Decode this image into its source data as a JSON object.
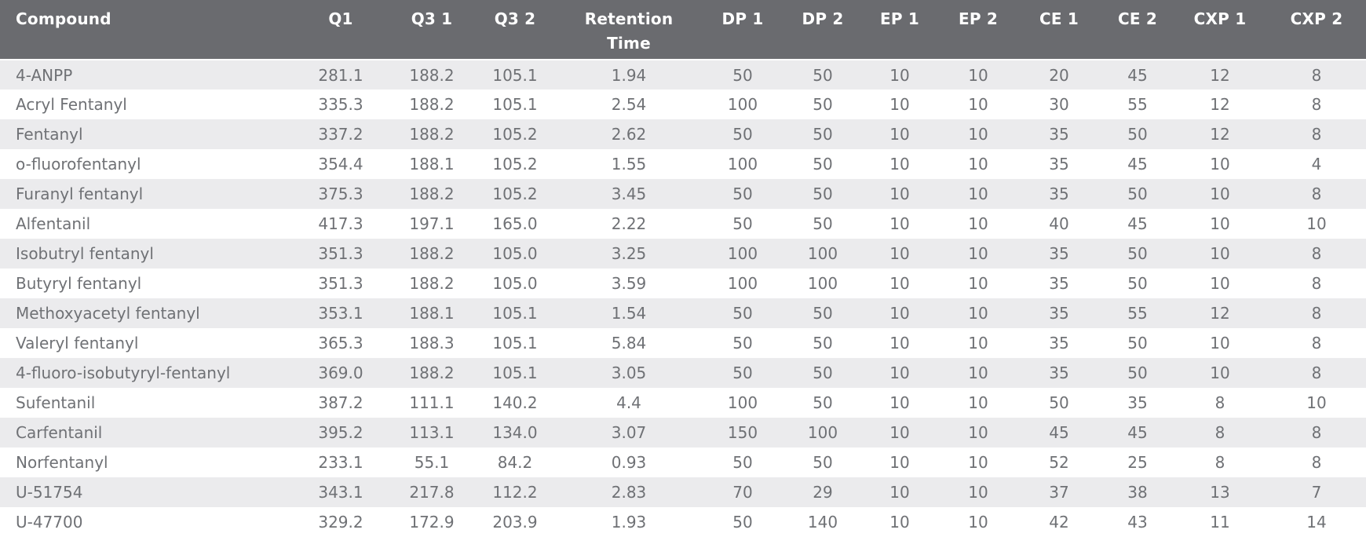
{
  "colors": {
    "header_bg": "#6a6b6f",
    "header_text": "#ffffff",
    "stripe_bg": "#ebebed",
    "row_bg": "#ffffff",
    "body_text": "#6f7175"
  },
  "table": {
    "columns": [
      {
        "key": "compound",
        "label": "Compound"
      },
      {
        "key": "q1",
        "label": "Q1"
      },
      {
        "key": "q3_1",
        "label": "Q3 1"
      },
      {
        "key": "q3_2",
        "label": "Q3 2"
      },
      {
        "key": "retention_time",
        "label": "Retention Time"
      },
      {
        "key": "dp_1",
        "label": "DP 1"
      },
      {
        "key": "dp_2",
        "label": "DP 2"
      },
      {
        "key": "ep_1",
        "label": "EP 1"
      },
      {
        "key": "ep_2",
        "label": "EP 2"
      },
      {
        "key": "ce_1",
        "label": "CE 1"
      },
      {
        "key": "ce_2",
        "label": "CE 2"
      },
      {
        "key": "cxp_1",
        "label": "CXP 1"
      },
      {
        "key": "cxp_2",
        "label": "CXP 2"
      }
    ],
    "rows": [
      [
        "4-ANPP",
        "281.1",
        "188.2",
        "105.1",
        "1.94",
        "50",
        "50",
        "10",
        "10",
        "20",
        "45",
        "12",
        "8"
      ],
      [
        "Acryl Fentanyl",
        "335.3",
        "188.2",
        "105.1",
        "2.54",
        "100",
        "50",
        "10",
        "10",
        "30",
        "55",
        "12",
        "8"
      ],
      [
        "Fentanyl",
        "337.2",
        "188.2",
        "105.2",
        "2.62",
        "50",
        "50",
        "10",
        "10",
        "35",
        "50",
        "12",
        "8"
      ],
      [
        "o-fluorofentanyl",
        "354.4",
        "188.1",
        "105.2",
        "1.55",
        "100",
        "50",
        "10",
        "10",
        "35",
        "45",
        "10",
        "4"
      ],
      [
        "Furanyl fentanyl",
        "375.3",
        "188.2",
        "105.2",
        "3.45",
        "50",
        "50",
        "10",
        "10",
        "35",
        "50",
        "10",
        "8"
      ],
      [
        "Alfentanil",
        "417.3",
        "197.1",
        "165.0",
        "2.22",
        "50",
        "50",
        "10",
        "10",
        "40",
        "45",
        "10",
        "10"
      ],
      [
        "Isobutryl fentanyl",
        "351.3",
        "188.2",
        "105.0",
        "3.25",
        "100",
        "100",
        "10",
        "10",
        "35",
        "50",
        "10",
        "8"
      ],
      [
        "Butyryl fentanyl",
        "351.3",
        "188.2",
        "105.0",
        "3.59",
        "100",
        "100",
        "10",
        "10",
        "35",
        "50",
        "10",
        "8"
      ],
      [
        "Methoxyacetyl fentanyl",
        "353.1",
        "188.1",
        "105.1",
        "1.54",
        "50",
        "50",
        "10",
        "10",
        "35",
        "55",
        "12",
        "8"
      ],
      [
        "Valeryl fentanyl",
        "365.3",
        "188.3",
        "105.1",
        "5.84",
        "50",
        "50",
        "10",
        "10",
        "35",
        "50",
        "10",
        "8"
      ],
      [
        "4-fluoro-isobutyryl-fentanyl",
        "369.0",
        "188.2",
        "105.1",
        "3.05",
        "50",
        "50",
        "10",
        "10",
        "35",
        "50",
        "10",
        "8"
      ],
      [
        "Sufentanil",
        "387.2",
        "111.1",
        "140.2",
        "4.4",
        "100",
        "50",
        "10",
        "10",
        "50",
        "35",
        "8",
        "10"
      ],
      [
        "Carfentanil",
        "395.2",
        "113.1",
        "134.0",
        "3.07",
        "150",
        "100",
        "10",
        "10",
        "45",
        "45",
        "8",
        "8"
      ],
      [
        "Norfentanyl",
        "233.1",
        "55.1",
        "84.2",
        "0.93",
        "50",
        "50",
        "10",
        "10",
        "52",
        "25",
        "8",
        "8"
      ],
      [
        "U-51754",
        "343.1",
        "217.8",
        "112.2",
        "2.83",
        "70",
        "29",
        "10",
        "10",
        "37",
        "38",
        "13",
        "7"
      ],
      [
        "U-47700",
        "329.2",
        "172.9",
        "203.9",
        "1.93",
        "50",
        "140",
        "10",
        "10",
        "42",
        "43",
        "11",
        "14"
      ]
    ]
  }
}
